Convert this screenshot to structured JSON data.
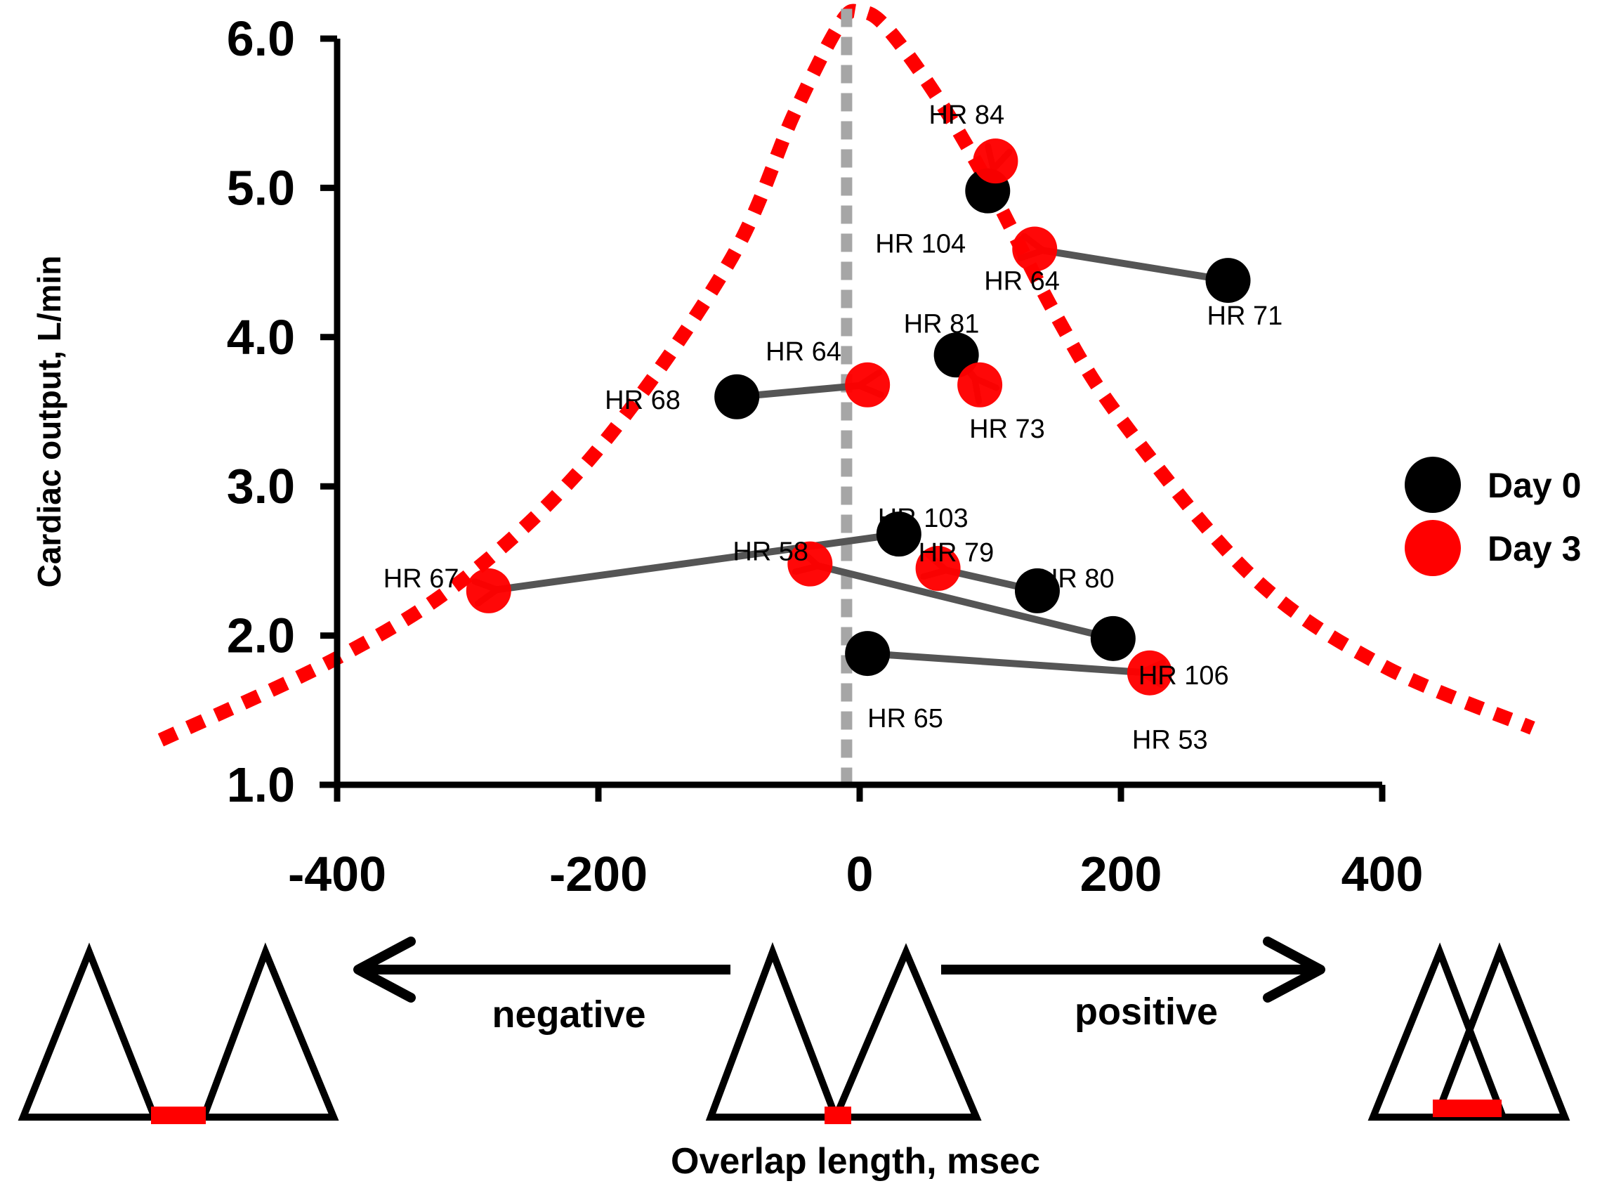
{
  "chart_data": {
    "type": "scatter",
    "title": "",
    "xlabel": "Overlap length, msec",
    "ylabel": "Cardiac output, L/min",
    "xlim": [
      -400,
      400
    ],
    "ylim": [
      1.0,
      6.0
    ],
    "x_ticks": [
      -400,
      -200,
      0,
      200,
      400
    ],
    "x_tick_labels": [
      "-400",
      "-200",
      "0",
      "200",
      "400"
    ],
    "y_ticks": [
      1.0,
      2.0,
      3.0,
      4.0,
      5.0,
      6.0
    ],
    "y_tick_labels": [
      "1.0",
      "2.0",
      "3.0",
      "4.0",
      "5.0",
      "6.0"
    ],
    "grid": false,
    "legend": {
      "placement": "right",
      "entries": [
        {
          "name": "Day 0",
          "color": "#000000"
        },
        {
          "name": "Day 3",
          "color": "#ff0000"
        }
      ]
    },
    "colors": {
      "day0": "#000000",
      "day3": "#ff0000",
      "arrow": "#555555",
      "curve": "#ff0000",
      "zero_line": "#a6a6a6"
    },
    "patients": [
      {
        "day0": {
          "x": 98,
          "y": 4.98,
          "hr": "HR 104"
        },
        "day3": {
          "x": 104,
          "y": 5.18,
          "hr": "HR 84"
        }
      },
      {
        "day0": {
          "x": 282,
          "y": 4.38,
          "hr": "HR 71"
        },
        "day3": {
          "x": 134,
          "y": 4.59,
          "hr": "HR 64"
        }
      },
      {
        "day0": {
          "x": -94,
          "y": 3.6,
          "hr": "HR 68"
        },
        "day3": {
          "x": 6,
          "y": 3.68,
          "hr": "HR 64"
        }
      },
      {
        "day0": {
          "x": 74,
          "y": 3.88,
          "hr": "HR 81"
        },
        "day3": {
          "x": 92,
          "y": 3.68,
          "hr": "HR 73"
        }
      },
      {
        "day0": {
          "x": 30,
          "y": 2.68,
          "hr": "HR 103"
        },
        "day3": {
          "x": -284,
          "y": 2.3,
          "hr": "HR 67"
        }
      },
      {
        "day0": {
          "x": 136,
          "y": 2.3,
          "hr": "HR 80"
        },
        "day3": {
          "x": 60,
          "y": 2.45,
          "hr": "HR 79"
        }
      },
      {
        "day0": {
          "x": 194,
          "y": 1.98,
          "hr": "HR 106"
        },
        "day3": {
          "x": -38,
          "y": 2.48,
          "hr": "HR 58"
        }
      },
      {
        "day0": {
          "x": 6,
          "y": 1.88,
          "hr": "HR 65"
        },
        "day3": {
          "x": 222,
          "y": 1.75,
          "hr": "HR 53"
        }
      }
    ],
    "optimal_curve": {
      "style": "dotted",
      "points": [
        [
          -535,
          1.3
        ],
        [
          -400,
          1.85
        ],
        [
          -300,
          2.4
        ],
        [
          -200,
          3.25
        ],
        [
          -100,
          4.5
        ],
        [
          -50,
          5.5
        ],
        [
          -15,
          6.1
        ],
        [
          0,
          6.18
        ],
        [
          20,
          6.08
        ],
        [
          60,
          5.6
        ],
        [
          100,
          5.0
        ],
        [
          150,
          4.15
        ],
        [
          200,
          3.45
        ],
        [
          300,
          2.4
        ],
        [
          400,
          1.8
        ],
        [
          515,
          1.38
        ]
      ]
    },
    "zero_line_x": -10,
    "annotations": {
      "negative": "negative",
      "positive": "positive"
    }
  }
}
